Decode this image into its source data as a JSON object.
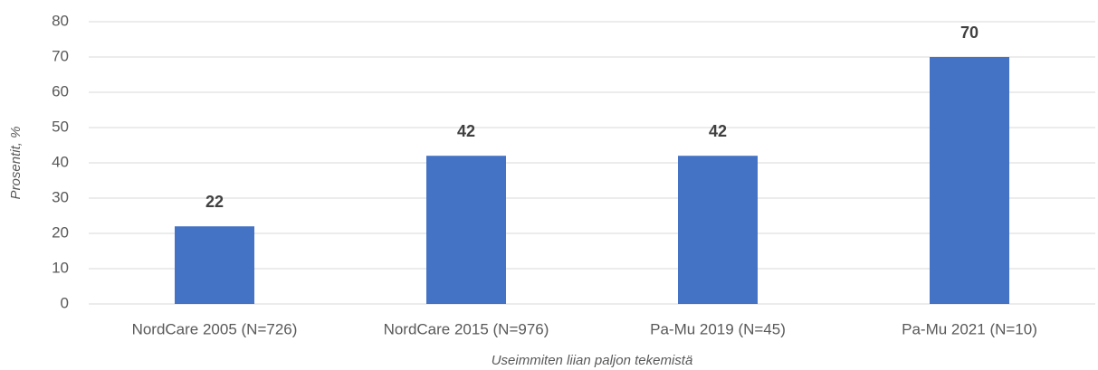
{
  "chart_data": {
    "type": "bar",
    "categories": [
      "NordCare 2005 (N=726)",
      "NordCare 2015 (N=976)",
      "Pa-Mu 2019 (N=45)",
      "Pa-Mu 2021 (N=10)"
    ],
    "values": [
      22,
      42,
      42,
      70
    ],
    "color": "#4472c4",
    "ylim": [
      0,
      80
    ],
    "yticks": [
      0,
      10,
      20,
      30,
      40,
      50,
      60,
      70,
      80
    ],
    "grid": true,
    "y_label": "Prosentit, %",
    "x_label": "Useimmiten liian paljon tekemistä"
  }
}
